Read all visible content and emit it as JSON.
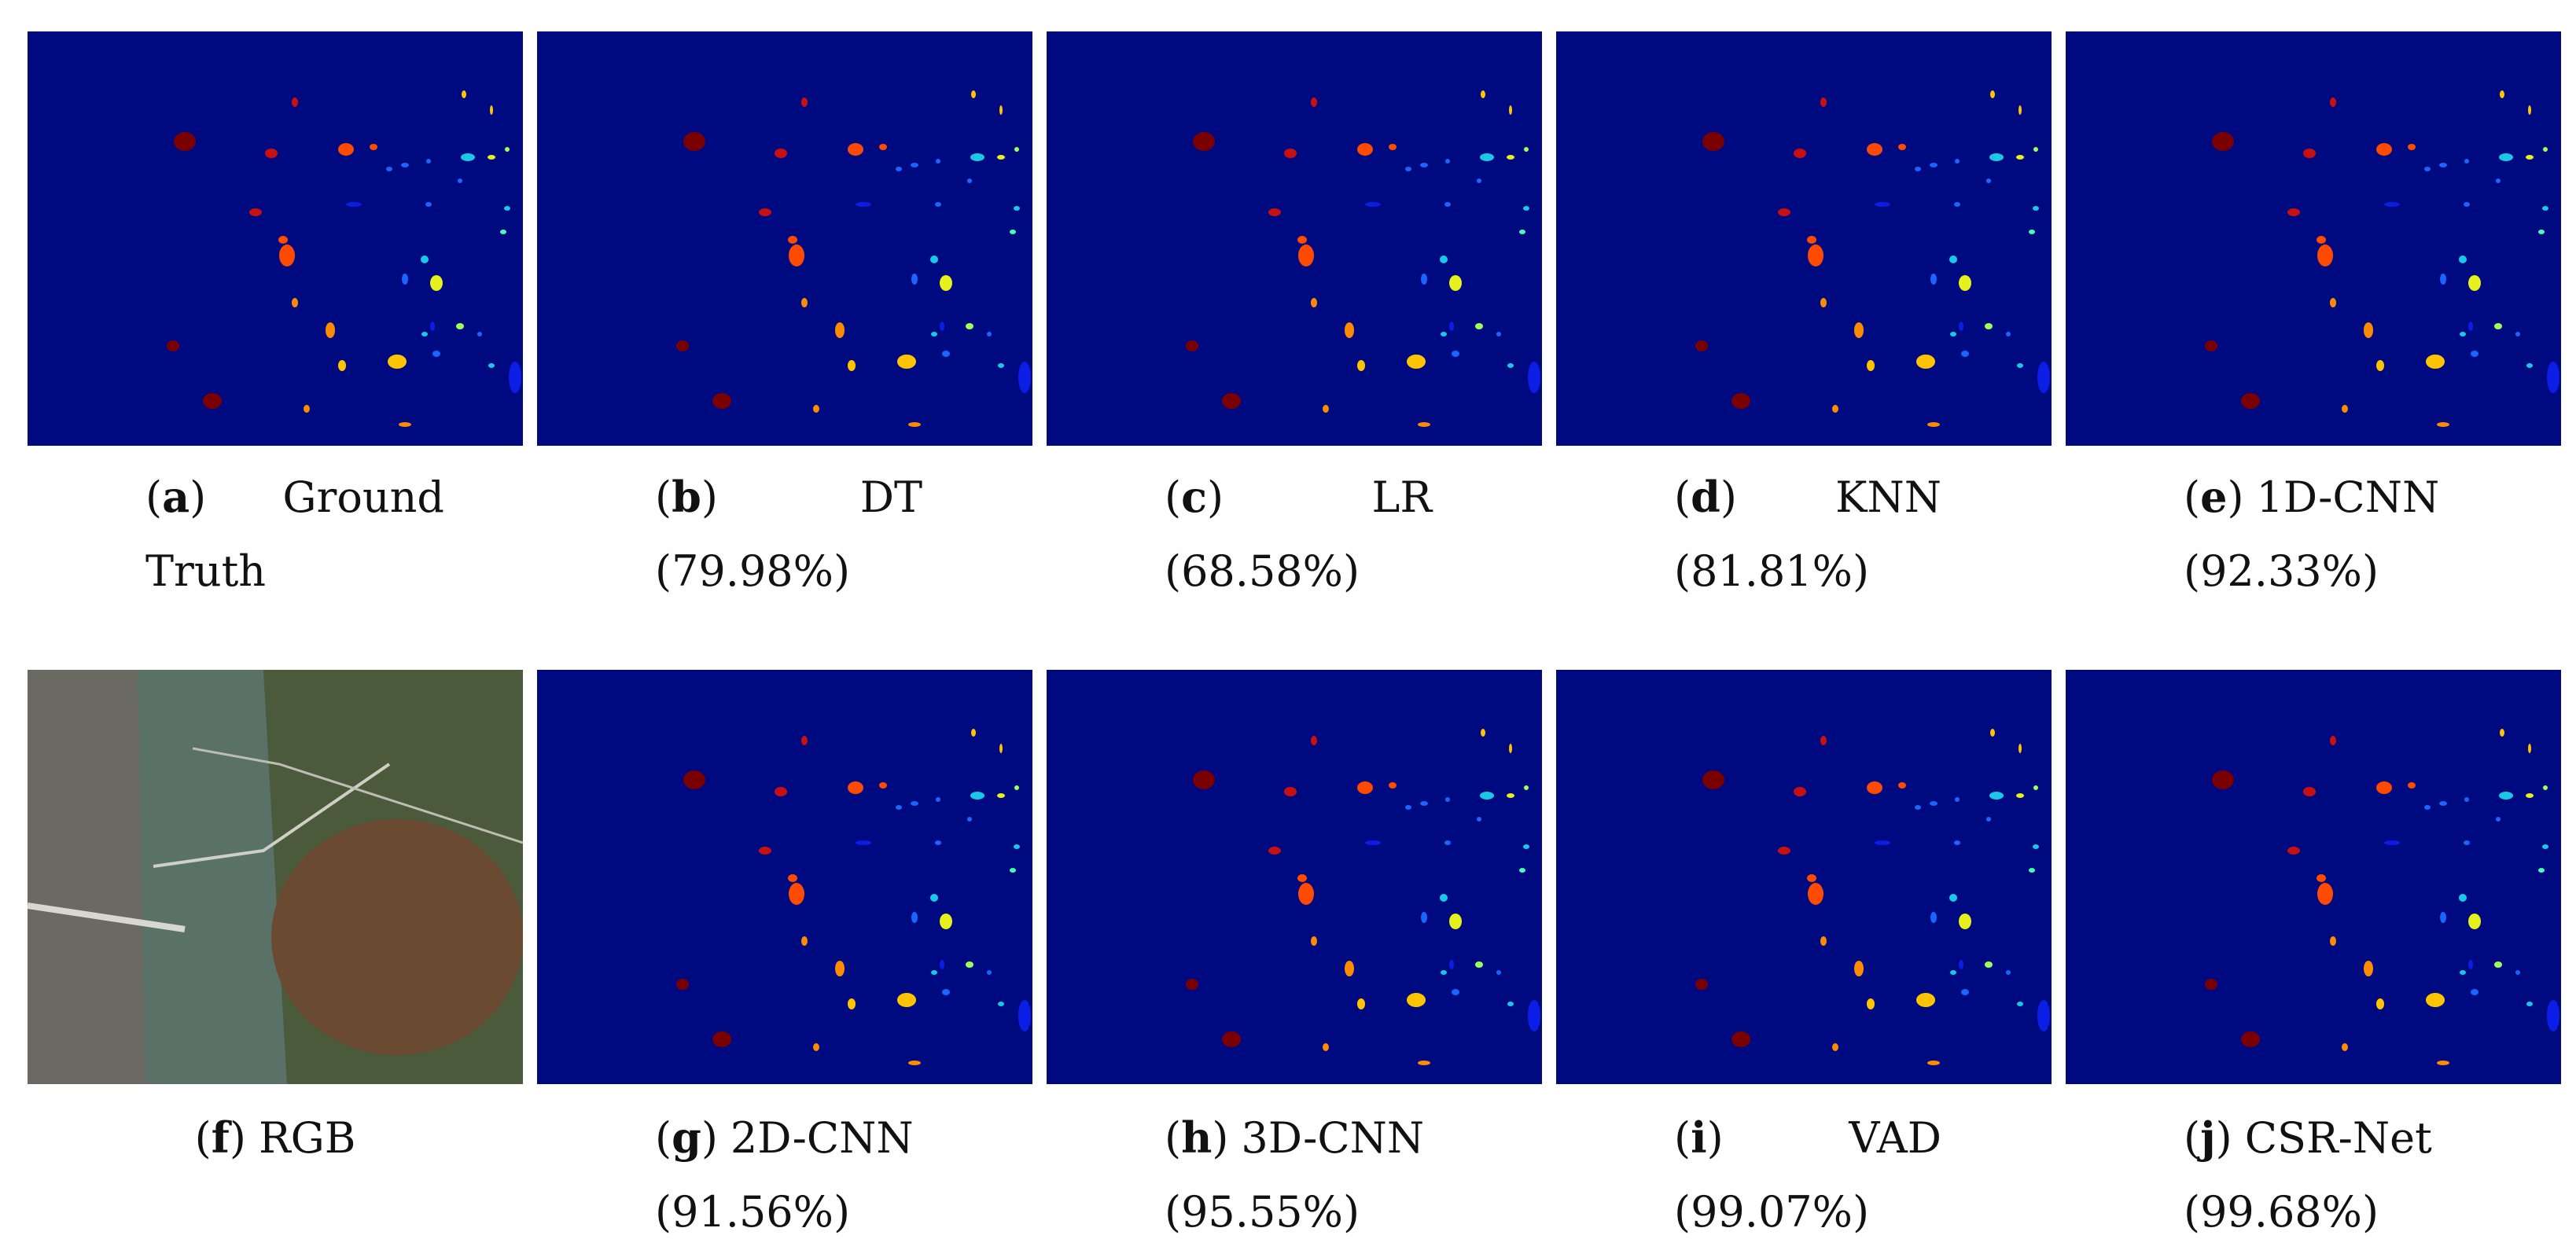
{
  "panels": [
    {
      "letter": "a",
      "line1": "Ground",
      "line2": "Truth",
      "type": "map"
    },
    {
      "letter": "b",
      "line1": "DT",
      "line2": "(79.98%)",
      "type": "map"
    },
    {
      "letter": "c",
      "line1": "LR",
      "line2": "(68.58%)",
      "type": "map"
    },
    {
      "letter": "d",
      "line1": "KNN",
      "line2": "(81.81%)",
      "type": "map"
    },
    {
      "letter": "e",
      "line1": "1D-CNN",
      "line2": "(92.33%)",
      "type": "map"
    },
    {
      "letter": "f",
      "line1": "RGB",
      "line2": "",
      "type": "rgb"
    },
    {
      "letter": "g",
      "line1": "2D-CNN",
      "line2": "(91.56%)",
      "type": "map"
    },
    {
      "letter": "h",
      "line1": "3D-CNN",
      "line2": "(95.55%)",
      "type": "map"
    },
    {
      "letter": "i",
      "line1": "VAD",
      "line2": "(99.07%)",
      "type": "map"
    },
    {
      "letter": "j",
      "line1": "CSR-Net",
      "line2": "(99.68%)",
      "type": "map"
    }
  ],
  "colors": {
    "background": "#000a80",
    "classes": [
      "#7a0000",
      "#c81010",
      "#ff4a00",
      "#ff8c00",
      "#ffc400",
      "#e6f01a",
      "#9cff5a",
      "#46ffb4",
      "#1ac8e6",
      "#1a64ff",
      "#0a1ee6"
    ]
  }
}
